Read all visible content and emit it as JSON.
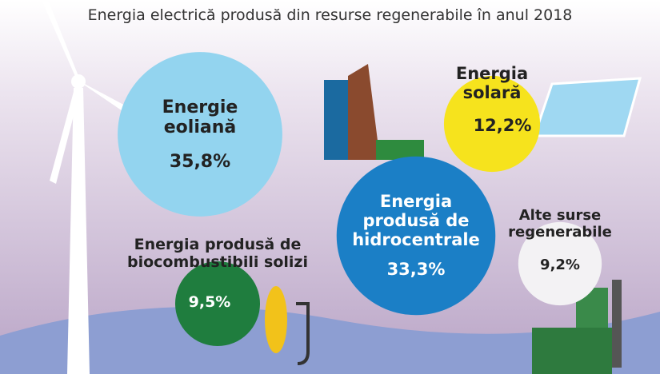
{
  "chart_data": {
    "type": "bubble",
    "title": "Energia electrică produsă din resurse regenerabile în anul 2018",
    "categories": [
      "Energie eoliană",
      "Energia produsă de hidrocentrale",
      "Energia solară",
      "Alte surse regenerabile",
      "Energia produsă de biocombustibili solizi"
    ],
    "values": [
      35.8,
      33.3,
      12.2,
      9.2,
      9.5
    ],
    "value_labels": [
      "35,8%",
      "33,3%",
      "12,2%",
      "9,2%",
      "9,5%"
    ],
    "colors": [
      "#93d4ef",
      "#1b7fc6",
      "#f6e31d",
      "#f3f2f4",
      "#1f7d3e"
    ]
  }
}
